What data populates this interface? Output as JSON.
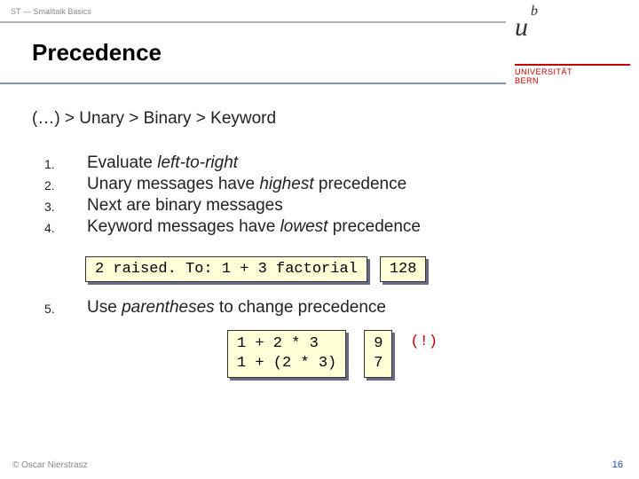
{
  "header": {
    "strip": "ST — Smalltalk Basics"
  },
  "title": "Precedence",
  "logo": {
    "uni1": "UNIVERSITÄT",
    "uni2": "BERN"
  },
  "subtitle": "(…) > Unary > Binary > Keyword",
  "rules": [
    {
      "num": "1.",
      "html": "Evaluate <em>left-to-right</em>"
    },
    {
      "num": "2.",
      "html": "Unary messages have <em>highest</em> precedence"
    },
    {
      "num": "3.",
      "html": "Next are binary messages"
    },
    {
      "num": "4.",
      "html": "Keyword messages have <em>lowest</em> precedence"
    }
  ],
  "code1": {
    "expr": "2 raised. To: 1 + 3 factorial",
    "result": "128"
  },
  "rule5": {
    "num": "5.",
    "html": "Use <em>parentheses</em> to change precedence"
  },
  "code2": {
    "expr": "1 + 2 * 3\n1 + (2 * 3)",
    "result": "9\n7",
    "warn": "(!)"
  },
  "footer": "© Oscar Nierstrasz",
  "page": "16"
}
